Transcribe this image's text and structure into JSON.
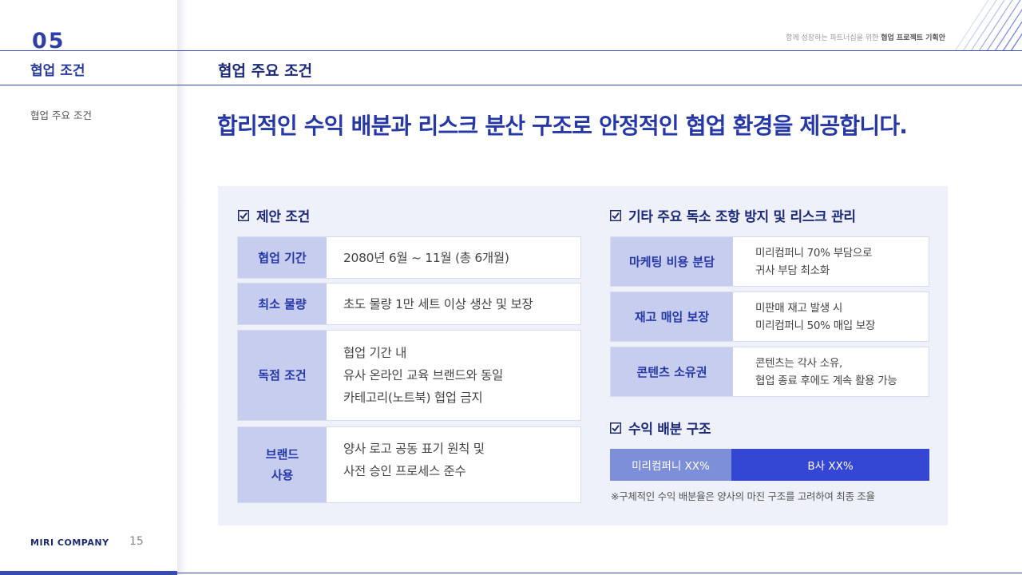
{
  "sidebar": {
    "section_number": "05",
    "title": "협업 조건",
    "items": [
      {
        "label": "협업 주요 조건"
      }
    ],
    "company": "MIRI COMPANY",
    "page": "15"
  },
  "header": {
    "tagline_prefix": "함께 성장하는 파트너십을 위한",
    "tagline_bold": "협업 프로젝트 기획안",
    "title": "협업 주요 조건"
  },
  "headline": "합리적인 수익 배분과 리스크 분산 구조로 안정적인 협업 환경을 제공합니다.",
  "proposal": {
    "heading": "제안 조건",
    "rows": [
      {
        "label": [
          "협업 기간"
        ],
        "value": [
          "2080년 6월 ~ 11월 (총 6개월)"
        ]
      },
      {
        "label": [
          "최소 물량"
        ],
        "value": [
          "초도 물량 1만 세트 이상 생산 및 보장"
        ]
      },
      {
        "label": [
          "독점 조건"
        ],
        "value": [
          "협업 기간 내",
          "유사 온라인 교육 브랜드와 동일",
          "카테고리(노트북) 협업 금지"
        ]
      },
      {
        "label": [
          "브랜드",
          "사용"
        ],
        "value": [
          "양사 로고 공동 표기 원칙 및",
          "사전 승인 프로세스 준수"
        ]
      }
    ]
  },
  "risk": {
    "heading": "기타 주요 독소 조항 방지 및 리스크 관리",
    "rows": [
      {
        "label": "마케팅 비용 분담",
        "value": [
          "미리컴퍼니 70% 부담으로",
          "귀사 부담 최소화"
        ]
      },
      {
        "label": "재고 매입 보장",
        "value": [
          "미판매 재고 발생 시",
          "미리컴퍼니 50% 매입 보장"
        ]
      },
      {
        "label": "콘텐츠 소유권",
        "value": [
          "콘텐츠는 각사 소유,",
          "협업 종료 후에도 계속 활용 가능"
        ]
      }
    ]
  },
  "revenue": {
    "heading": "수익 배분 구조",
    "share_a": "미리컴퍼니 XX%",
    "share_b": "B사 XX%",
    "note": "※구체적인 수익 배분율은 양사의 마진 구조를 고려하여 최종 조율"
  },
  "colors": {
    "accent": "#2638a8",
    "label_bg": "#c6cdee",
    "panel_bg": "#eef1fa",
    "share_a": "#7e8fda",
    "share_b": "#3346d4"
  },
  "icons": {
    "check": "checkbox-checked-icon",
    "stripes": "diagonal-stripes-decoration"
  }
}
